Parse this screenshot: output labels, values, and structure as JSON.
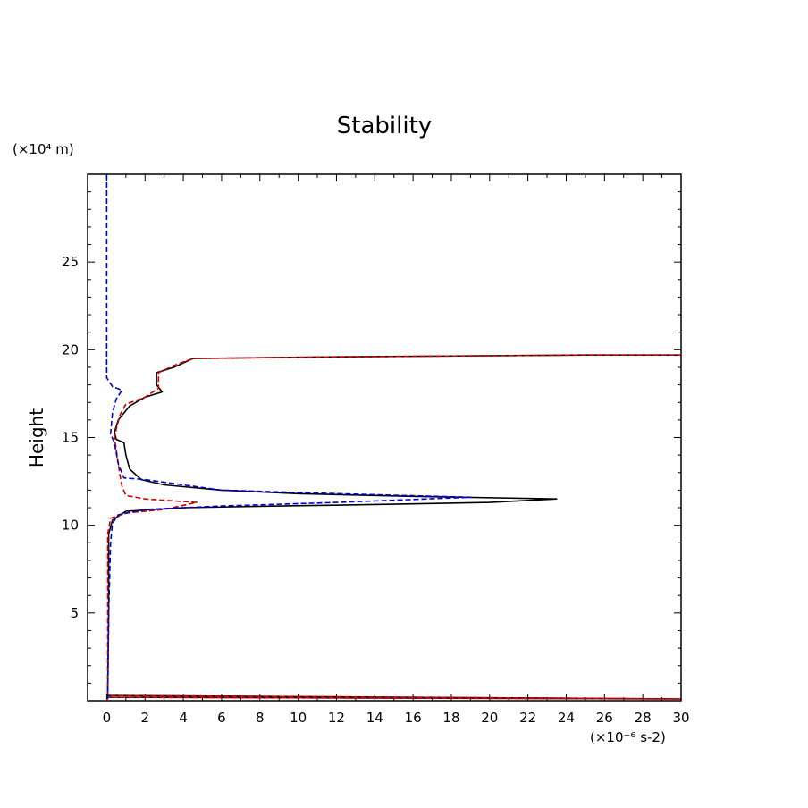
{
  "chart_data": {
    "type": "line",
    "title": "Stability",
    "ylabel": "Height",
    "yunit_label": "(×10⁴ m)",
    "xunit_label": "(×10⁻⁶ s-2)",
    "xlim": [
      -1,
      30
    ],
    "ylim": [
      0,
      30
    ],
    "xticks": [
      0,
      2,
      4,
      6,
      8,
      10,
      12,
      14,
      16,
      18,
      20,
      22,
      24,
      26,
      28,
      30
    ],
    "xtick_labels": [
      "0",
      "2",
      "4",
      "6",
      "8",
      "10",
      "12",
      "14",
      "16",
      "18",
      "20",
      "22",
      "24",
      "26",
      "28",
      "30"
    ],
    "yticks": [
      5,
      10,
      15,
      20,
      25
    ],
    "ytick_labels": [
      "5",
      "10",
      "15",
      "20",
      "25"
    ],
    "grid": false,
    "series": [
      {
        "color": "#000000",
        "style": "solid",
        "points": [
          [
            0.0,
            0.0
          ],
          [
            0.05,
            0.2
          ],
          [
            30.0,
            0.1
          ],
          [
            0.05,
            0.3
          ],
          [
            0.1,
            5
          ],
          [
            0.1,
            9.5
          ],
          [
            0.3,
            10.3
          ],
          [
            1.0,
            10.8
          ],
          [
            4,
            11.0
          ],
          [
            9,
            11.1
          ],
          [
            15,
            11.2
          ],
          [
            20,
            11.3
          ],
          [
            23.5,
            11.5
          ],
          [
            16,
            11.65
          ],
          [
            10,
            11.8
          ],
          [
            6,
            12.0
          ],
          [
            3,
            12.3
          ],
          [
            1.8,
            12.6
          ],
          [
            1.2,
            13.2
          ],
          [
            1.0,
            14.0
          ],
          [
            0.9,
            14.7
          ],
          [
            0.5,
            14.9
          ],
          [
            0.4,
            15.3
          ],
          [
            0.6,
            16.0
          ],
          [
            1.2,
            16.8
          ],
          [
            2.0,
            17.3
          ],
          [
            2.9,
            17.6
          ],
          [
            2.6,
            18.0
          ],
          [
            2.6,
            18.7
          ],
          [
            3.5,
            19.0
          ],
          [
            4.5,
            19.5
          ],
          [
            12,
            19.6
          ],
          [
            25,
            19.7
          ],
          [
            30.0,
            19.7
          ]
        ]
      },
      {
        "color": "#cc0000",
        "style": "dashed",
        "points": [
          [
            0.0,
            0.0
          ],
          [
            0.05,
            0.2
          ],
          [
            30.0,
            0.1
          ],
          [
            0.05,
            0.3
          ],
          [
            0.05,
            5
          ],
          [
            0.05,
            9.5
          ],
          [
            0.2,
            10.4
          ],
          [
            1.0,
            10.7
          ],
          [
            3.0,
            10.9
          ],
          [
            4.7,
            11.3
          ],
          [
            2.0,
            11.5
          ],
          [
            1.0,
            11.7
          ],
          [
            0.8,
            12.2
          ],
          [
            0.7,
            12.8
          ],
          [
            0.6,
            13.5
          ],
          [
            0.5,
            14.3
          ],
          [
            0.4,
            15.0
          ],
          [
            0.5,
            15.5
          ],
          [
            0.7,
            16.3
          ],
          [
            1.0,
            16.9
          ],
          [
            2.0,
            17.3
          ],
          [
            2.7,
            17.8
          ],
          [
            2.7,
            18.7
          ],
          [
            3.5,
            19.1
          ],
          [
            4.5,
            19.5
          ],
          [
            12,
            19.6
          ],
          [
            25,
            19.7
          ],
          [
            30.0,
            19.7
          ]
        ]
      },
      {
        "color": "#0000cc",
        "style": "dashed",
        "points": [
          [
            0.0,
            30.0
          ],
          [
            0.0,
            18.4
          ],
          [
            0.3,
            17.9
          ],
          [
            0.8,
            17.7
          ],
          [
            0.5,
            17.2
          ],
          [
            0.3,
            16.4
          ],
          [
            0.2,
            15.2
          ],
          [
            0.4,
            14.7
          ],
          [
            0.6,
            13.5
          ],
          [
            0.9,
            12.7
          ],
          [
            2.0,
            12.6
          ],
          [
            6,
            12.0
          ],
          [
            12,
            11.8
          ],
          [
            19,
            11.6
          ],
          [
            12,
            11.3
          ],
          [
            6,
            11.1
          ],
          [
            2.0,
            10.9
          ],
          [
            0.6,
            10.6
          ],
          [
            0.3,
            10.1
          ],
          [
            0.2,
            9.0
          ],
          [
            0.1,
            5
          ],
          [
            0.05,
            0.3
          ],
          [
            0.05,
            0.1
          ]
        ]
      }
    ]
  }
}
